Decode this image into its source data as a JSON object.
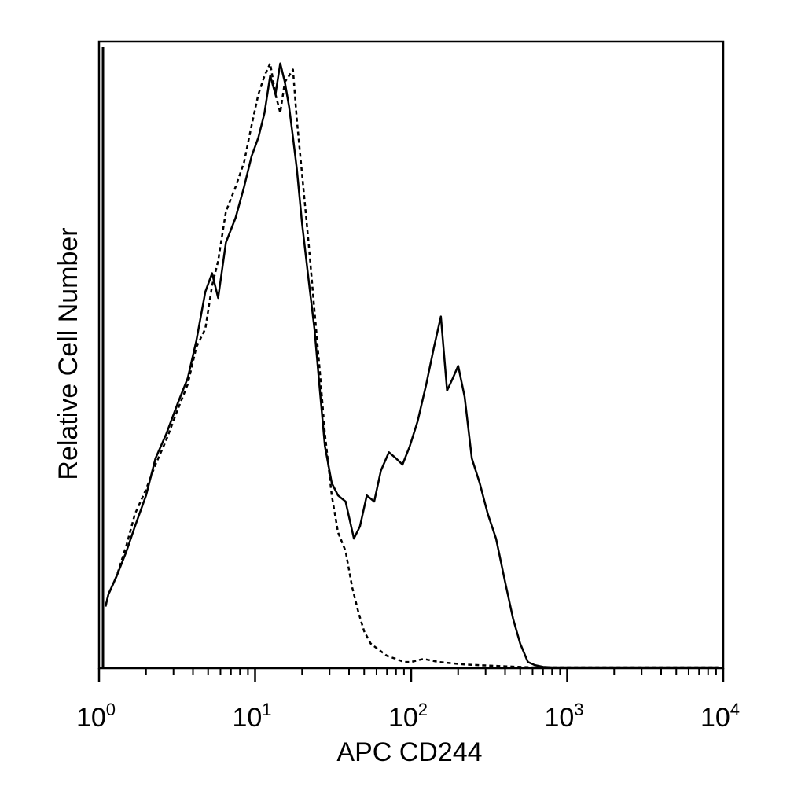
{
  "chart_data": {
    "type": "line",
    "title": "",
    "xlabel": "APC CD244",
    "ylabel": "Relative Cell Number",
    "x_scale": "log",
    "xlim": [
      1,
      10000
    ],
    "ylim": [
      0,
      100
    ],
    "y_ticks_visible": false,
    "grid": false,
    "legend": "none",
    "x_ticks": [
      {
        "value": 1,
        "base": "10",
        "exp": "0"
      },
      {
        "value": 10,
        "base": "10",
        "exp": "1"
      },
      {
        "value": 100,
        "base": "10",
        "exp": "2"
      },
      {
        "value": 1000,
        "base": "10",
        "exp": "3"
      },
      {
        "value": 10000,
        "base": "10",
        "exp": "4"
      }
    ],
    "series": [
      {
        "style": "solid",
        "color": "#000000",
        "x": [
          1.1,
          1.15,
          1.3,
          1.5,
          1.7,
          2.0,
          2.3,
          2.7,
          3.2,
          3.7,
          4.2,
          4.8,
          5.3,
          5.8,
          6.5,
          7.5,
          8.5,
          9.5,
          10.5,
          11.5,
          12.5,
          13.5,
          14.5,
          15.5,
          16.5,
          17.5,
          18.5,
          20,
          22,
          24,
          26,
          28,
          31,
          34,
          38,
          43,
          47,
          52,
          58,
          64,
          72,
          80,
          88,
          98,
          110,
          125,
          140,
          155,
          170,
          185,
          200,
          220,
          245,
          275,
          310,
          350,
          400,
          450,
          500,
          560,
          620,
          700,
          800,
          1000,
          1500,
          2000,
          3000,
          5000,
          8000,
          9300
        ],
        "y": [
          10,
          12,
          15,
          19,
          23,
          28,
          34,
          38,
          43,
          47,
          53,
          61,
          64,
          60,
          69,
          73,
          78,
          83,
          86,
          90,
          96,
          93,
          98,
          95,
          91,
          86,
          81,
          72,
          63,
          55,
          45,
          36,
          30,
          28,
          27,
          21,
          23,
          28,
          27,
          32,
          35,
          34,
          33,
          36,
          40,
          46,
          52,
          57,
          45,
          47,
          49,
          44,
          34,
          30,
          25,
          21,
          14,
          8,
          4,
          1,
          0.5,
          0.2,
          0.1,
          0.05,
          0.05,
          0.05,
          0.05,
          0.05,
          0.05,
          0.05
        ]
      },
      {
        "style": "dashed",
        "color": "#000000",
        "x": [
          1.1,
          1.15,
          1.3,
          1.5,
          1.7,
          2.0,
          2.3,
          2.7,
          3.2,
          3.7,
          4.2,
          4.8,
          5.3,
          5.8,
          6.5,
          7.5,
          8.5,
          9.5,
          10.5,
          11.5,
          12.5,
          13.5,
          14.5,
          15.5,
          16.5,
          17.5,
          18.5,
          20,
          22,
          24,
          26,
          28,
          31,
          34,
          38,
          42,
          46,
          50,
          55,
          62,
          70,
          80,
          90,
          100,
          120,
          150,
          180,
          220,
          270,
          330,
          400,
          500,
          600,
          700,
          800,
          1000,
          2000,
          5000,
          9300
        ],
        "y": [
          10,
          12,
          15,
          20,
          25,
          29,
          33,
          37,
          42,
          46,
          52,
          55,
          62,
          66,
          74,
          78,
          82,
          88,
          93,
          96,
          98,
          93,
          90,
          95,
          96,
          97,
          89,
          80,
          69,
          58,
          48,
          38,
          28,
          22,
          19,
          13,
          9,
          6,
          4,
          3,
          2,
          1.5,
          1,
          1,
          1.5,
          1,
          0.8,
          0.6,
          0.5,
          0.4,
          0.3,
          0.2,
          0.1,
          0.05,
          0.05,
          0.05,
          0.05,
          0.05,
          0.05
        ]
      }
    ]
  }
}
